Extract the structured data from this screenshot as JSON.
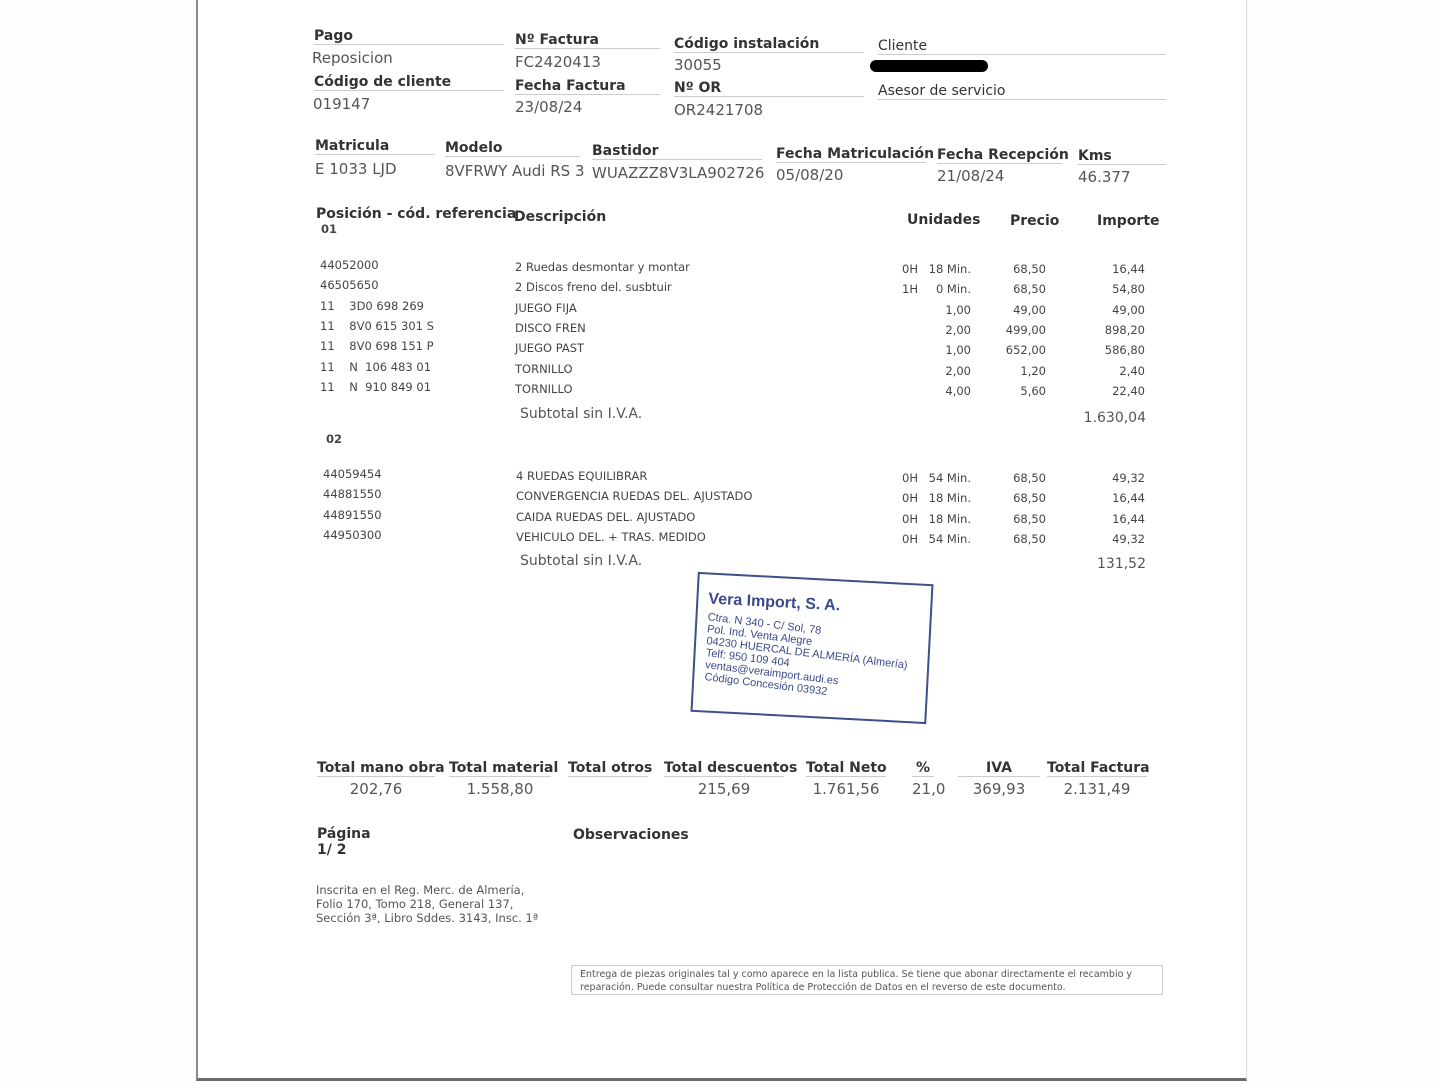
{
  "header": {
    "pago_label": "Pago",
    "pago_value": "Reposicion",
    "factura_label": "Nº Factura",
    "factura_value": "FC2420413",
    "instalacion_label": "Código instalación",
    "instalacion_value": "30055",
    "cliente_label": "Cliente",
    "codigo_cliente_label": "Código de cliente",
    "codigo_cliente_value": "019147",
    "fecha_factura_label": "Fecha Factura",
    "fecha_factura_value": "23/08/24",
    "or_label": "Nº OR",
    "or_value": "OR2421708",
    "asesor_label": "Asesor de servicio"
  },
  "vehicle": {
    "matricula_label": "Matricula",
    "matricula_value": "E 1033 LJD",
    "modelo_label": "Modelo",
    "modelo_value": "8VFRWY Audi RS 3",
    "bastidor_label": "Bastidor",
    "bastidor_value": "WUAZZZ8V3LA902726",
    "fecha_matric_label": "Fecha Matriculación",
    "fecha_matric_value": "05/08/20",
    "fecha_recep_label": "Fecha Recepción",
    "fecha_recep_value": "21/08/24",
    "kms_label": "Kms",
    "kms_value": "46.377"
  },
  "table_headers": {
    "posicion": "Posición - cód. referencia",
    "descripcion": "Descripción",
    "unidades": "Unidades",
    "precio": "Precio",
    "importe": "Importe"
  },
  "groups": [
    {
      "id": "01",
      "rows": [
        {
          "ref": "44052000",
          "desc": "2 Ruedas desmontar y montar",
          "h": "0H",
          "units": "18 Min.",
          "price": "68,50",
          "amount": "16,44"
        },
        {
          "ref": "46505650",
          "desc": "2 Discos freno del. susbtuir",
          "h": "1H",
          "units": "0 Min.",
          "price": "68,50",
          "amount": "54,80"
        },
        {
          "ref": "11    3D0 698 269",
          "desc": "JUEGO FIJA",
          "h": "",
          "units": "1,00",
          "price": "49,00",
          "amount": "49,00"
        },
        {
          "ref": "11    8V0 615 301 S",
          "desc": "DISCO FREN",
          "h": "",
          "units": "2,00",
          "price": "499,00",
          "amount": "898,20"
        },
        {
          "ref": "11    8V0 698 151 P",
          "desc": "JUEGO PAST",
          "h": "",
          "units": "1,00",
          "price": "652,00",
          "amount": "586,80"
        },
        {
          "ref": "11    N  106 483 01",
          "desc": "TORNILLO",
          "h": "",
          "units": "2,00",
          "price": "1,20",
          "amount": "2,40"
        },
        {
          "ref": "11    N  910 849 01",
          "desc": "TORNILLO",
          "h": "",
          "units": "4,00",
          "price": "5,60",
          "amount": "22,40"
        }
      ],
      "subtotal_label": "Subtotal sin I.V.A.",
      "subtotal": "1.630,04"
    },
    {
      "id": "02",
      "rows": [
        {
          "ref": "44059454",
          "desc": "4 RUEDAS EQUILIBRAR",
          "h": "0H",
          "units": "54 Min.",
          "price": "68,50",
          "amount": "49,32"
        },
        {
          "ref": "44881550",
          "desc": "CONVERGENCIA RUEDAS DEL. AJUSTADO",
          "h": "0H",
          "units": "18 Min.",
          "price": "68,50",
          "amount": "16,44"
        },
        {
          "ref": "44891550",
          "desc": "CAIDA RUEDAS DEL. AJUSTADO",
          "h": "0H",
          "units": "18 Min.",
          "price": "68,50",
          "amount": "16,44"
        },
        {
          "ref": "44950300",
          "desc": "VEHICULO DEL. + TRAS. MEDIDO",
          "h": "0H",
          "units": "54 Min.",
          "price": "68,50",
          "amount": "49,32"
        }
      ],
      "subtotal_label": "Subtotal sin I.V.A.",
      "subtotal": "131,52"
    }
  ],
  "stamp": {
    "name": "Vera Import, S. A.",
    "lines": [
      "Ctra. N 340 - C/ Sol, 78",
      "Pol. Ind. Venta Alegre",
      "04230 HUERCAL DE ALMERÍA (Almería)",
      "Telf: 950 109 404",
      "ventas@veraimport.audi.es",
      "Código Concesión 03932"
    ]
  },
  "totals": [
    {
      "label": "Total mano obra",
      "value": "202,76"
    },
    {
      "label": "Total material",
      "value": "1.558,80"
    },
    {
      "label": "Total otros",
      "value": ""
    },
    {
      "label": "Total descuentos",
      "value": "215,69"
    },
    {
      "label": "Total Neto",
      "value": "1.761,56"
    },
    {
      "label": "%",
      "value": "21,0"
    },
    {
      "label": "IVA",
      "value": "369,93"
    },
    {
      "label": "Total Factura",
      "value": "2.131,49"
    }
  ],
  "pagina_label": "Página",
  "pagina_value": "1/ 2",
  "observaciones_label": "Observaciones",
  "registro": [
    "Inscrita en el Reg. Merc. de Almería,",
    "Folio 170, Tomo 218, General 137,",
    "Sección 3ª, Libro Sddes. 3143, Insc. 1ª"
  ],
  "footer_note": "Entrega de piezas originales tal y como aparece en la lista publica. Se tiene que abonar directamente el recambio y reparación. Puede consultar nuestra Política de Protección de Datos en el reverso de este documento."
}
